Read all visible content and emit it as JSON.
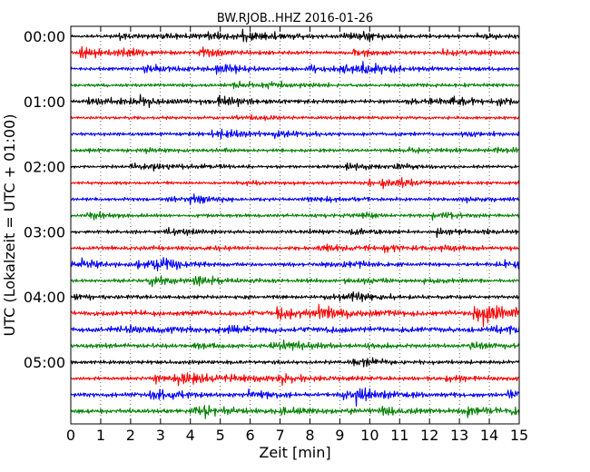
{
  "chart_data": {
    "type": "line",
    "title": "BW.RJOB..HHZ 2016-01-26",
    "xlabel": "Zeit  [min]",
    "ylabel": "UTC (Lokalzeit = UTC + 01:00)",
    "xlim": [
      0,
      15
    ],
    "x_ticks": [
      0,
      1,
      2,
      3,
      4,
      5,
      6,
      7,
      8,
      9,
      10,
      11,
      12,
      13,
      14,
      15
    ],
    "y_tick_labels": [
      "00:00",
      "01:00",
      "02:00",
      "03:00",
      "04:00",
      "05:00"
    ],
    "traces_per_hour": 4,
    "minutes_per_trace": 15,
    "grid": "vertical dotted at each minute",
    "trace_colors": [
      "#000000",
      "#ff0000",
      "#0000ff",
      "#008000"
    ],
    "traces": [
      {
        "start": "00:00",
        "amplitude": 1.0
      },
      {
        "start": "00:15",
        "amplitude": 1.0
      },
      {
        "start": "00:30",
        "amplitude": 1.1
      },
      {
        "start": "00:45",
        "amplitude": 1.0
      },
      {
        "start": "01:00",
        "amplitude": 1.1
      },
      {
        "start": "01:15",
        "amplitude": 0.9
      },
      {
        "start": "01:30",
        "amplitude": 1.0
      },
      {
        "start": "01:45",
        "amplitude": 1.0
      },
      {
        "start": "02:00",
        "amplitude": 0.9
      },
      {
        "start": "02:15",
        "amplitude": 0.9
      },
      {
        "start": "02:30",
        "amplitude": 1.0
      },
      {
        "start": "02:45",
        "amplitude": 0.9
      },
      {
        "start": "03:00",
        "amplitude": 1.0
      },
      {
        "start": "03:15",
        "amplitude": 1.1
      },
      {
        "start": "03:30",
        "amplitude": 1.0
      },
      {
        "start": "03:45",
        "amplitude": 1.1
      },
      {
        "start": "04:00",
        "amplitude": 1.0
      },
      {
        "start": "04:15",
        "amplitude": 1.5
      },
      {
        "start": "04:30",
        "amplitude": 1.5
      },
      {
        "start": "04:45",
        "amplitude": 1.2
      },
      {
        "start": "05:00",
        "amplitude": 1.1
      },
      {
        "start": "05:15",
        "amplitude": 1.2
      },
      {
        "start": "05:30",
        "amplitude": 1.3
      },
      {
        "start": "05:45",
        "amplitude": 1.3
      }
    ]
  }
}
